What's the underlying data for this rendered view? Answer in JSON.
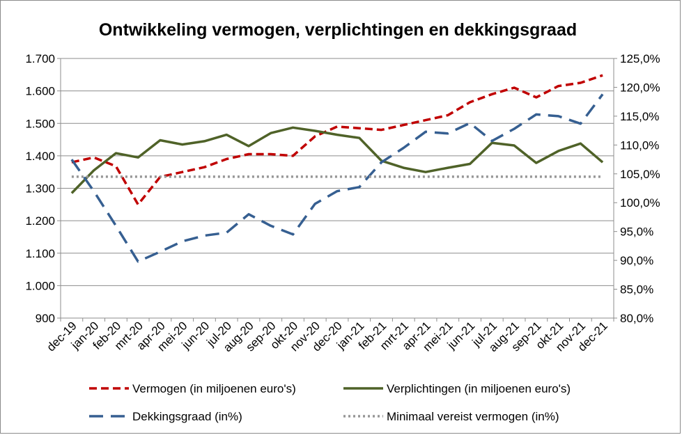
{
  "chart_data": {
    "type": "line",
    "title": "Ontwikkeling vermogen, verplichtingen en dekkingsgraad",
    "categories": [
      "dec-19",
      "jan-20",
      "feb-20",
      "mrt-20",
      "apr-20",
      "mei-20",
      "jun-20",
      "jul-20",
      "aug-20",
      "sep-20",
      "okt-20",
      "nov-20",
      "dec-20",
      "jan-21",
      "feb-21",
      "mrt-21",
      "apr-21",
      "mei-21",
      "jun-21",
      "jul-21",
      "aug-21",
      "sep-21",
      "okt-21",
      "nov-21",
      "dec-21"
    ],
    "y_left": {
      "min": 900,
      "max": 1700,
      "ticks": [
        "900",
        "1.000",
        "1.100",
        "1.200",
        "1.300",
        "1.400",
        "1.500",
        "1.600",
        "1.700"
      ]
    },
    "y_right": {
      "min": 80,
      "max": 125,
      "ticks": [
        "80,0%",
        "85,0%",
        "90,0%",
        "95,0%",
        "100,0%",
        "105,0%",
        "110,0%",
        "115,0%",
        "120,0%",
        "125,0%"
      ]
    },
    "grid": "horizontal",
    "legend_position": "bottom",
    "series": [
      {
        "name": "Vermogen (in miljoenen euro's)",
        "axis": "left",
        "color": "#c00000",
        "style": "dash",
        "values": [
          1380,
          1395,
          1368,
          1250,
          1335,
          1350,
          1365,
          1390,
          1405,
          1405,
          1400,
          1460,
          1490,
          1485,
          1480,
          1495,
          1510,
          1525,
          1565,
          1590,
          1610,
          1580,
          1615,
          1625,
          1648
        ]
      },
      {
        "name": "Verplichtingen (in miljoenen euro's)",
        "axis": "left",
        "color": "#4f6228",
        "style": "solid",
        "values": [
          1285,
          1355,
          1408,
          1395,
          1448,
          1435,
          1445,
          1465,
          1430,
          1470,
          1487,
          1477,
          1465,
          1455,
          1385,
          1363,
          1350,
          1363,
          1375,
          1440,
          1432,
          1378,
          1415,
          1438,
          1380
        ]
      },
      {
        "name": "Dekkingsgraad (in%)",
        "axis": "right",
        "color": "#365f91",
        "style": "longdash",
        "values": [
          107.5,
          102.0,
          96.0,
          89.8,
          91.5,
          93.3,
          94.3,
          94.8,
          98.0,
          96.0,
          94.5,
          99.8,
          102.0,
          102.7,
          107.0,
          109.5,
          112.3,
          112.0,
          113.8,
          110.7,
          112.8,
          115.3,
          115.0,
          113.7,
          118.8
        ]
      },
      {
        "name": "Minimaal vereist vermogen (in%)",
        "axis": "right",
        "color": "#969696",
        "style": "dot",
        "values": [
          104.5,
          104.5,
          104.5,
          104.5,
          104.5,
          104.5,
          104.5,
          104.5,
          104.5,
          104.5,
          104.5,
          104.5,
          104.5,
          104.5,
          104.5,
          104.5,
          104.5,
          104.5,
          104.5,
          104.5,
          104.5,
          104.5,
          104.5,
          104.5,
          104.5
        ]
      }
    ]
  }
}
